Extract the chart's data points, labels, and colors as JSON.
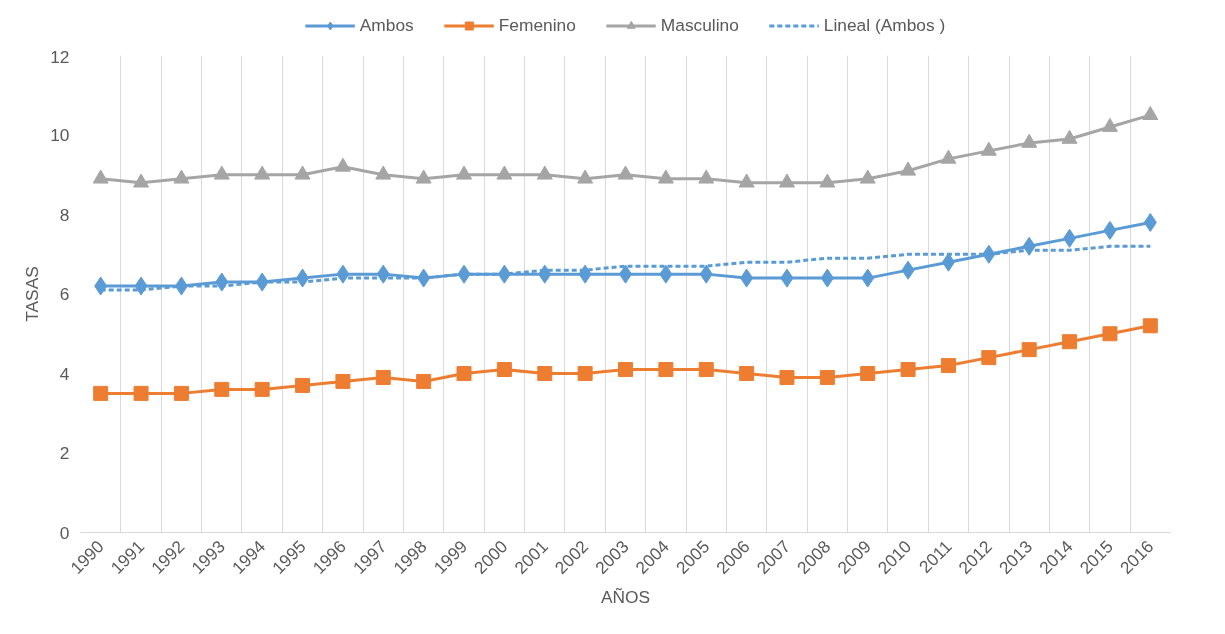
{
  "chart_data": {
    "type": "line",
    "xlabel": "AÑOS",
    "ylabel": "TASAS",
    "categories": [
      "1990",
      "1991",
      "1992",
      "1993",
      "1994",
      "1995",
      "1996",
      "1997",
      "1998",
      "1999",
      "2000",
      "2001",
      "2002",
      "2003",
      "2004",
      "2005",
      "2006",
      "2007",
      "2008",
      "2009",
      "2010",
      "2011",
      "2012",
      "2013",
      "2014",
      "2015",
      "2016"
    ],
    "ylim": [
      0,
      12
    ],
    "yticks": [
      0,
      2,
      4,
      6,
      8,
      10,
      12
    ],
    "grid": true,
    "legend": "top",
    "series": [
      {
        "name": "Ambos",
        "color": "#5b9bd5",
        "marker": "diamond",
        "values": [
          6.2,
          6.2,
          6.2,
          6.3,
          6.3,
          6.4,
          6.5,
          6.5,
          6.4,
          6.5,
          6.5,
          6.5,
          6.5,
          6.5,
          6.5,
          6.5,
          6.4,
          6.4,
          6.4,
          6.4,
          6.6,
          6.8,
          7.0,
          7.2,
          7.4,
          7.6,
          7.8
        ]
      },
      {
        "name": "Femenino",
        "color": "#ed7d31",
        "marker": "square",
        "values": [
          3.5,
          3.5,
          3.5,
          3.6,
          3.6,
          3.7,
          3.8,
          3.9,
          3.8,
          4.0,
          4.1,
          4.0,
          4.0,
          4.1,
          4.1,
          4.1,
          4.0,
          3.9,
          3.9,
          4.0,
          4.1,
          4.2,
          4.4,
          4.6,
          4.8,
          5.0,
          5.2
        ]
      },
      {
        "name": "Masculino",
        "color": "#a5a5a5",
        "marker": "triangle",
        "values": [
          8.9,
          8.8,
          8.9,
          9.0,
          9.0,
          9.0,
          9.2,
          9.0,
          8.9,
          9.0,
          9.0,
          9.0,
          8.9,
          9.0,
          8.9,
          8.9,
          8.8,
          8.8,
          8.8,
          8.9,
          9.1,
          9.4,
          9.6,
          9.8,
          9.9,
          10.2,
          10.5
        ]
      },
      {
        "name": "Lineal (Ambos )",
        "color": "#5b9bd5",
        "marker": "none",
        "line_style": "dashed",
        "values": [
          6.1,
          6.1,
          6.2,
          6.2,
          6.3,
          6.3,
          6.4,
          6.4,
          6.4,
          6.5,
          6.5,
          6.6,
          6.6,
          6.7,
          6.7,
          6.7,
          6.8,
          6.8,
          6.9,
          6.9,
          7.0,
          7.0,
          7.0,
          7.1,
          7.1,
          7.2,
          7.2
        ]
      }
    ]
  }
}
